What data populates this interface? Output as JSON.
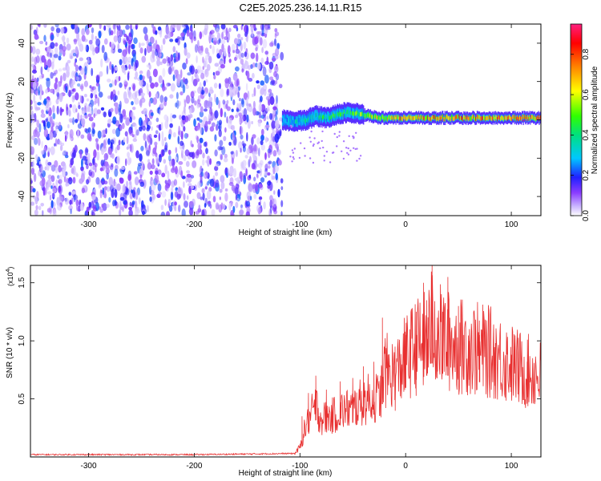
{
  "title": "C2E5.2025.236.14.11.R15",
  "chart_data": [
    {
      "type": "heatmap",
      "xlabel": "Height of straight line (km)",
      "ylabel": "Frequency (Hz)",
      "xlim": [
        -355,
        128
      ],
      "ylim": [
        -50,
        50
      ],
      "xticks": [
        -300,
        -200,
        -100,
        0,
        100
      ],
      "yticks": [
        -40,
        -20,
        0,
        20,
        40
      ],
      "noise_region_x": [
        -355,
        -117
      ],
      "noise_region_max_amplitude": 0.2,
      "signal_track": {
        "x": [
          -117,
          -105,
          -95,
          -85,
          -75,
          -65,
          -55,
          -45,
          -35,
          -25,
          -15,
          -5,
          5,
          15,
          25,
          35,
          45,
          55,
          65,
          75,
          85,
          95,
          105,
          115,
          128
        ],
        "frequency": [
          0,
          -1,
          0,
          2,
          1,
          3,
          4,
          3,
          2,
          1,
          1,
          1,
          1,
          1,
          1,
          1,
          1,
          1,
          1,
          1,
          1,
          1,
          1,
          1,
          1
        ],
        "peak_amplitude": [
          0.3,
          0.4,
          0.45,
          0.45,
          0.5,
          0.55,
          0.55,
          0.6,
          0.7,
          0.75,
          0.8,
          0.85,
          0.85,
          0.85,
          0.9,
          0.85,
          0.9,
          0.9,
          0.85,
          0.9,
          0.9,
          0.9,
          0.9,
          0.9,
          0.9
        ]
      },
      "colorbar": {
        "label": "Normalized spectral amplitude",
        "range": [
          0.0,
          0.95
        ],
        "ticks": [
          "0.0",
          "0.2",
          "0.4",
          "0.6",
          "0.8"
        ],
        "colormap": "rainbow"
      }
    },
    {
      "type": "line",
      "xlabel": "Height of straight line (km)",
      "ylabel": "SNR (10 * v/v)",
      "y_multiplier": "(x10",
      "y_multiplier_exp": "4",
      "y_multiplier_close": ")",
      "xlim": [
        -355,
        128
      ],
      "ylim": [
        0,
        1.65
      ],
      "xticks": [
        -300,
        -200,
        -100,
        0,
        100
      ],
      "yticks": [
        "0.5",
        "1.0",
        "1.5"
      ],
      "color": "#e83030",
      "series": [
        {
          "x": [
            -355,
            -300,
            -200,
            -105,
            -100,
            -95,
            -90,
            -85,
            -80,
            -70,
            -60,
            -50,
            -40,
            -30,
            -25,
            -20,
            -10,
            0,
            10,
            20,
            25,
            30,
            40,
            50,
            60,
            70,
            80,
            90,
            100,
            110,
            120,
            128
          ],
          "y": [
            0.02,
            0.02,
            0.02,
            0.03,
            0.08,
            0.25,
            0.35,
            0.45,
            0.33,
            0.35,
            0.4,
            0.42,
            0.48,
            0.52,
            0.5,
            0.75,
            0.7,
            0.85,
            0.95,
            1.0,
            1.15,
            1.05,
            1.0,
            0.95,
            0.95,
            0.92,
            0.9,
            0.85,
            0.8,
            0.75,
            0.72,
            0.7
          ],
          "spikes": [
            [
              -98,
              0.35
            ],
            [
              -92,
              0.55
            ],
            [
              -85,
              0.7
            ],
            [
              -75,
              0.58
            ],
            [
              -62,
              0.65
            ],
            [
              -50,
              0.68
            ],
            [
              -40,
              0.78
            ],
            [
              -30,
              0.82
            ],
            [
              -22,
              1.2
            ],
            [
              -10,
              0.95
            ],
            [
              0,
              1.05
            ],
            [
              10,
              1.25
            ],
            [
              17,
              1.5
            ],
            [
              20,
              1.35
            ],
            [
              25,
              1.65
            ],
            [
              30,
              1.2
            ],
            [
              35,
              1.25
            ],
            [
              40,
              1.55
            ],
            [
              50,
              1.3
            ],
            [
              55,
              1.05
            ],
            [
              60,
              1.0
            ],
            [
              70,
              1.05
            ],
            [
              85,
              0.98
            ],
            [
              100,
              0.88
            ],
            [
              115,
              0.82
            ]
          ]
        }
      ]
    }
  ]
}
